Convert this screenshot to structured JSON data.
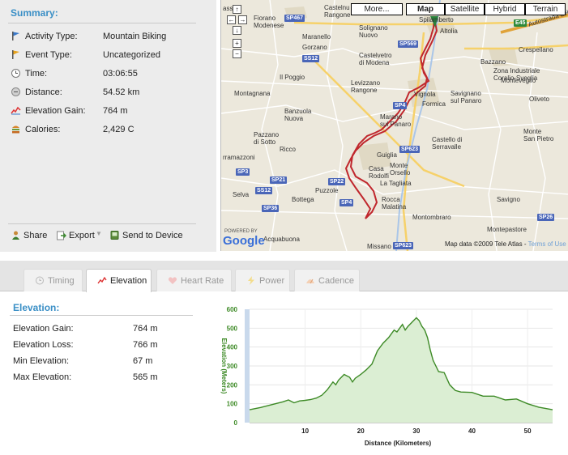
{
  "summary": {
    "title": "Summary:",
    "rows": [
      {
        "label": "Activity Type:",
        "value": "Mountain Biking",
        "icon": "flag-blue-icon"
      },
      {
        "label": "Event Type:",
        "value": "Uncategorized",
        "icon": "flag-orange-icon"
      },
      {
        "label": "Time:",
        "value": "03:06:55",
        "icon": "clock-icon"
      },
      {
        "label": "Distance:",
        "value": "54.52 km",
        "icon": "distance-icon"
      },
      {
        "label": "Elevation Gain:",
        "value": "764 m",
        "icon": "elevation-icon"
      },
      {
        "label": "Calories:",
        "value": "2,429 C",
        "icon": "calories-icon"
      }
    ],
    "actions": [
      {
        "label": "Share",
        "icon": "share-icon"
      },
      {
        "label": "Export",
        "icon": "export-icon"
      },
      {
        "label": "Send to Device",
        "icon": "send-device-icon"
      }
    ]
  },
  "map": {
    "buttons": {
      "more": "More...",
      "map": "Map",
      "satellite": "Satellite",
      "hybrid": "Hybrid",
      "terrain": "Terrain"
    },
    "powered_by": "POWERED BY",
    "google": "Google",
    "credit": "Map data ©2009 Tele Atlas - ",
    "terms": "Terms of Use",
    "places": {
      "fiorano": "Fiorano\nModenese",
      "castelnuovo": "Castelnu\nRangone",
      "spilamberto": "Spilamberto",
      "maranello": "Maranello",
      "solignano": "Solignano\nNuovo",
      "altolia": "Altolia",
      "gorzano": "Gorzano",
      "castelvetro": "Castelvetro\ndi Modena",
      "bazzano": "Bazzano",
      "crespellano": "Crespellano",
      "zona_industriale": "Zona Industriale\nCoralio-Sveglia",
      "ilpoggio": "Il Poggio",
      "levizzano": "Levizzano\nRangone",
      "vignola": "Vignola",
      "savignano": "Savignano\nsul Panaro",
      "monteveglio": "Monteveglio",
      "oliveto": "Oliveto",
      "montagnana": "Montagnana",
      "formica": "Formica",
      "banzuola": "Banzuola\nNuova",
      "marano": "Marano\nsul Panaro",
      "pazzano": "Pazzano\ndi Sotto",
      "castello": "Castello di\nSerravalle",
      "monte_san_pietro": "Monte\nSan Pietro",
      "ricco": "Ricco",
      "guiglia": "Guiglia",
      "ramazzoni": "rramazzoni",
      "casa_rodolfi": "Casa\nRodolfi",
      "monte_orsello": "Monte\nOrsello",
      "la_tagliata": "La Tagliata",
      "selva": "Selva",
      "bottega": "Bottega",
      "puzzole": "Puzzole",
      "rocca": "Rocca\nMalatina",
      "savigno": "Savigno",
      "montombraro": "Montombraro",
      "montepastore": "Montepastore",
      "acquabuona": "Acquabuona",
      "missano": "Missano",
      "autostrada": "Autostrada del Sol",
      "cassalbo": "asso"
    },
    "shields": {
      "sp467": "SP467",
      "sp569": "SP569",
      "ss12a": "SS12",
      "ss12b": "SS12",
      "sp4a": "SP4",
      "sp623a": "SP623",
      "sp3": "SP3",
      "sp21": "SP21",
      "sp22": "SP22",
      "sp4b": "SP4",
      "sp36": "SP36",
      "sp623b": "SP623",
      "sp26": "SP26",
      "e45": "E45"
    }
  },
  "tabs": [
    {
      "label": "Timing",
      "icon": "clock-icon",
      "active": false
    },
    {
      "label": "Elevation",
      "icon": "elevation-icon",
      "active": true
    },
    {
      "label": "Heart Rate",
      "icon": "heart-icon",
      "active": false
    },
    {
      "label": "Power",
      "icon": "lightning-icon",
      "active": false
    },
    {
      "label": "Cadence",
      "icon": "cadence-icon",
      "active": false
    }
  ],
  "elevation": {
    "title": "Elevation:",
    "rows": [
      {
        "label": "Elevation Gain:",
        "value": "764 m"
      },
      {
        "label": "Elevation Loss:",
        "value": "766 m"
      },
      {
        "label": "Min Elevation:",
        "value": "67 m"
      },
      {
        "label": "Max Elevation:",
        "value": "565 m"
      }
    ]
  },
  "chart_data": {
    "type": "area",
    "xlabel": "Distance (Kilometers)",
    "ylabel": "Elevation (Meters)",
    "xlim": [
      0,
      54.5
    ],
    "ylim": [
      0,
      600
    ],
    "xticks": [
      10,
      20,
      30,
      40,
      50
    ],
    "yticks": [
      0,
      100,
      200,
      300,
      400,
      500,
      600
    ],
    "line_color": "#3d8a26",
    "fill_color": "#dbeed3",
    "series": [
      {
        "x": [
          0,
          2,
          4,
          6,
          7,
          8,
          9,
          10,
          11,
          12,
          13,
          14,
          14.5,
          15,
          15.5,
          16,
          17,
          18,
          18.5,
          19,
          20,
          21,
          22,
          23,
          24,
          25,
          25.5,
          26,
          26.5,
          27,
          27.5,
          28,
          28.5,
          29,
          29.5,
          30,
          30.5,
          31,
          31.5,
          32,
          32.5,
          33,
          34,
          35,
          36,
          37,
          38,
          40,
          42,
          44,
          46,
          48,
          50,
          52,
          54.5
        ],
        "y": [
          68,
          80,
          95,
          110,
          120,
          105,
          115,
          118,
          122,
          130,
          145,
          175,
          195,
          215,
          200,
          225,
          255,
          240,
          215,
          235,
          255,
          280,
          310,
          380,
          420,
          450,
          470,
          490,
          480,
          500,
          520,
          490,
          510,
          525,
          540,
          555,
          540,
          510,
          490,
          450,
          385,
          330,
          270,
          265,
          200,
          170,
          162,
          160,
          140,
          140,
          120,
          125,
          100,
          82,
          68
        ]
      }
    ]
  }
}
